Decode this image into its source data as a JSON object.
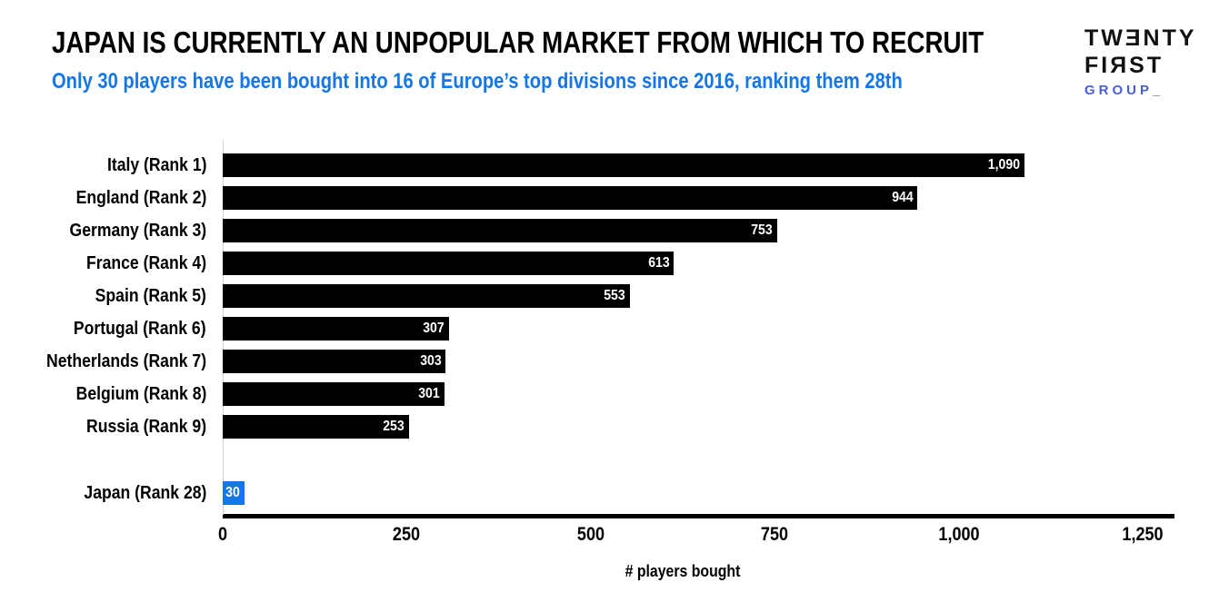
{
  "colors": {
    "accent_blue": "#1476e8",
    "logo_blue": "#4a5fd5",
    "bar_black": "#000000",
    "axis_black": "#000000",
    "gridline_gray": "#d2d2d2"
  },
  "logo": {
    "line1": "TWƎNTY",
    "line2": "FIЯST",
    "line3": "GROUP_"
  },
  "chart_data": {
    "type": "bar",
    "orientation": "horizontal",
    "title": "JAPAN IS CURRENTLY AN UNPOPULAR MARKET FROM WHICH TO RECRUIT",
    "subtitle": "Only 30 players have been bought into 16 of Europe’s top divisions since 2016, ranking them 28th",
    "xlabel": "# players bought",
    "xlim": [
      0,
      1250
    ],
    "grid": false,
    "legend": false,
    "x_ticks": [
      {
        "label": "0",
        "value": 0
      },
      {
        "label": "250",
        "value": 250
      },
      {
        "label": "500",
        "value": 500
      },
      {
        "label": "750",
        "value": 750
      },
      {
        "label": "1,000",
        "value": 1000
      },
      {
        "label": "1,250",
        "value": 1250
      }
    ],
    "bars": [
      {
        "label": "Italy (Rank 1)",
        "value": 1090,
        "display": "1,090",
        "color": "black"
      },
      {
        "label": "England (Rank 2)",
        "value": 944,
        "display": "944",
        "color": "black"
      },
      {
        "label": "Germany (Rank 3)",
        "value": 753,
        "display": "753",
        "color": "black"
      },
      {
        "label": "France (Rank 4)",
        "value": 613,
        "display": "613",
        "color": "black"
      },
      {
        "label": "Spain (Rank 5)",
        "value": 553,
        "display": "553",
        "color": "black"
      },
      {
        "label": "Portugal (Rank 6)",
        "value": 307,
        "display": "307",
        "color": "black"
      },
      {
        "label": "Netherlands (Rank 7)",
        "value": 303,
        "display": "303",
        "color": "black"
      },
      {
        "label": "Belgium (Rank 8)",
        "value": 301,
        "display": "301",
        "color": "black"
      },
      {
        "label": "Russia (Rank 9)",
        "value": 253,
        "display": "253",
        "color": "black"
      },
      {
        "spacer": true
      },
      {
        "label": "Japan (Rank 28)",
        "value": 30,
        "display": "30",
        "color": "highlight"
      }
    ]
  }
}
